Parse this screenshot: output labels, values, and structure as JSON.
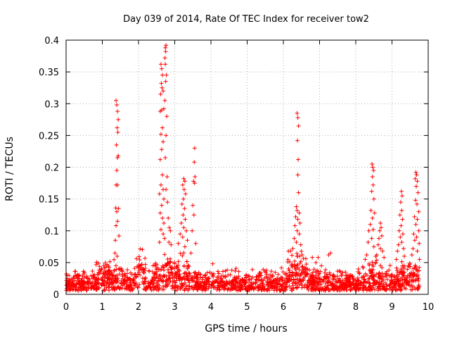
{
  "chart_data": {
    "type": "scatter",
    "title": "Day 039 of 2014, Rate Of TEC Index for receiver tow2",
    "xlabel": "GPS time / hours",
    "ylabel": "ROTI / TECUs",
    "xlim": [
      0,
      10
    ],
    "ylim": [
      0,
      0.4
    ],
    "x_ticks": [
      "0",
      "1",
      "2",
      "3",
      "4",
      "5",
      "6",
      "7",
      "8",
      "9",
      "10"
    ],
    "y_ticks": [
      "0",
      "0.05",
      "0.1",
      "0.15",
      "0.2",
      "0.25",
      "0.3",
      "0.35",
      "0.4"
    ],
    "grid": true,
    "marker": "+",
    "color": "#ff0000",
    "series": [
      {
        "name": "ROTI",
        "points": [
          [
            1.38,
            0.305
          ],
          [
            1.4,
            0.298
          ],
          [
            1.42,
            0.288
          ],
          [
            1.44,
            0.275
          ],
          [
            1.41,
            0.262
          ],
          [
            1.43,
            0.255
          ],
          [
            1.39,
            0.235
          ],
          [
            1.42,
            0.215
          ],
          [
            1.44,
            0.218
          ],
          [
            1.4,
            0.195
          ],
          [
            1.38,
            0.172
          ],
          [
            1.42,
            0.172
          ],
          [
            1.37,
            0.136
          ],
          [
            1.4,
            0.13
          ],
          [
            1.45,
            0.135
          ],
          [
            1.38,
            0.108
          ],
          [
            1.42,
            0.115
          ],
          [
            1.46,
            0.092
          ],
          [
            1.36,
            0.085
          ],
          [
            1.35,
            0.065
          ],
          [
            1.41,
            0.06
          ],
          [
            2.62,
            0.362
          ],
          [
            2.64,
            0.355
          ],
          [
            2.66,
            0.345
          ],
          [
            2.63,
            0.332
          ],
          [
            2.65,
            0.325
          ],
          [
            2.61,
            0.315
          ],
          [
            2.68,
            0.32
          ],
          [
            2.64,
            0.29
          ],
          [
            2.6,
            0.288
          ],
          [
            2.7,
            0.292
          ],
          [
            2.66,
            0.262
          ],
          [
            2.62,
            0.252
          ],
          [
            2.68,
            0.24
          ],
          [
            2.64,
            0.228
          ],
          [
            2.6,
            0.212
          ],
          [
            2.66,
            0.188
          ],
          [
            2.62,
            0.172
          ],
          [
            2.68,
            0.165
          ],
          [
            2.58,
            0.158
          ],
          [
            2.7,
            0.15
          ],
          [
            2.64,
            0.14
          ],
          [
            2.6,
            0.128
          ],
          [
            2.66,
            0.12
          ],
          [
            2.7,
            0.112
          ],
          [
            2.62,
            0.102
          ],
          [
            2.68,
            0.095
          ],
          [
            2.72,
            0.088
          ],
          [
            2.58,
            0.082
          ],
          [
            2.74,
            0.388
          ],
          [
            2.76,
            0.392
          ],
          [
            2.75,
            0.382
          ],
          [
            2.73,
            0.372
          ],
          [
            2.74,
            0.362
          ],
          [
            2.77,
            0.345
          ],
          [
            2.75,
            0.335
          ],
          [
            2.73,
            0.305
          ],
          [
            2.78,
            0.28
          ],
          [
            2.76,
            0.25
          ],
          [
            2.74,
            0.215
          ],
          [
            2.79,
            0.185
          ],
          [
            2.76,
            0.165
          ],
          [
            2.8,
            0.145
          ],
          [
            2.82,
            0.12
          ],
          [
            2.85,
            0.105
          ],
          [
            2.88,
            0.1
          ],
          [
            2.84,
            0.082
          ],
          [
            2.9,
            0.078
          ],
          [
            3.25,
            0.182
          ],
          [
            3.28,
            0.178
          ],
          [
            3.22,
            0.172
          ],
          [
            3.26,
            0.165
          ],
          [
            3.3,
            0.158
          ],
          [
            3.24,
            0.15
          ],
          [
            3.2,
            0.142
          ],
          [
            3.27,
            0.135
          ],
          [
            3.23,
            0.125
          ],
          [
            3.29,
            0.118
          ],
          [
            3.18,
            0.112
          ],
          [
            3.25,
            0.105
          ],
          [
            3.32,
            0.1
          ],
          [
            3.15,
            0.095
          ],
          [
            3.22,
            0.09
          ],
          [
            3.35,
            0.085
          ],
          [
            3.1,
            0.08
          ],
          [
            3.28,
            0.075
          ],
          [
            3.55,
            0.23
          ],
          [
            3.54,
            0.208
          ],
          [
            3.56,
            0.185
          ],
          [
            3.52,
            0.178
          ],
          [
            3.55,
            0.175
          ],
          [
            3.5,
            0.14
          ],
          [
            3.53,
            0.125
          ],
          [
            3.48,
            0.1
          ],
          [
            3.58,
            0.08
          ],
          [
            3.45,
            0.065
          ],
          [
            4.05,
            0.048
          ],
          [
            6.38,
            0.285
          ],
          [
            6.4,
            0.278
          ],
          [
            6.42,
            0.265
          ],
          [
            6.39,
            0.242
          ],
          [
            6.41,
            0.212
          ],
          [
            6.4,
            0.188
          ],
          [
            6.42,
            0.16
          ],
          [
            6.36,
            0.138
          ],
          [
            6.38,
            0.132
          ],
          [
            6.44,
            0.128
          ],
          [
            6.34,
            0.122
          ],
          [
            6.4,
            0.118
          ],
          [
            6.46,
            0.112
          ],
          [
            6.32,
            0.108
          ],
          [
            6.38,
            0.1
          ],
          [
            6.44,
            0.095
          ],
          [
            6.3,
            0.088
          ],
          [
            6.36,
            0.082
          ],
          [
            6.48,
            0.078
          ],
          [
            6.26,
            0.072
          ],
          [
            6.2,
            0.068
          ],
          [
            6.14,
            0.068
          ],
          [
            6.52,
            0.062
          ],
          [
            6.8,
            0.058
          ],
          [
            6.96,
            0.058
          ],
          [
            7.3,
            0.065
          ],
          [
            7.25,
            0.062
          ],
          [
            6.9,
            0.05
          ],
          [
            7.05,
            0.045
          ],
          [
            8.45,
            0.205
          ],
          [
            8.47,
            0.2
          ],
          [
            8.49,
            0.195
          ],
          [
            8.46,
            0.185
          ],
          [
            8.48,
            0.172
          ],
          [
            8.44,
            0.162
          ],
          [
            8.5,
            0.15
          ],
          [
            8.42,
            0.132
          ],
          [
            8.52,
            0.128
          ],
          [
            8.46,
            0.12
          ],
          [
            8.4,
            0.11
          ],
          [
            8.48,
            0.102
          ],
          [
            8.36,
            0.1
          ],
          [
            8.44,
            0.088
          ],
          [
            8.34,
            0.082
          ],
          [
            8.5,
            0.075
          ],
          [
            8.3,
            0.062
          ],
          [
            8.26,
            0.055
          ],
          [
            8.68,
            0.112
          ],
          [
            8.7,
            0.105
          ],
          [
            8.66,
            0.1
          ],
          [
            8.72,
            0.092
          ],
          [
            8.64,
            0.088
          ],
          [
            8.62,
            0.078
          ],
          [
            8.68,
            0.072
          ],
          [
            8.74,
            0.068
          ],
          [
            8.58,
            0.062
          ],
          [
            8.78,
            0.058
          ],
          [
            8.55,
            0.05
          ],
          [
            9.26,
            0.162
          ],
          [
            9.28,
            0.155
          ],
          [
            9.24,
            0.145
          ],
          [
            9.27,
            0.132
          ],
          [
            9.22,
            0.125
          ],
          [
            9.29,
            0.118
          ],
          [
            9.25,
            0.108
          ],
          [
            9.2,
            0.1
          ],
          [
            9.3,
            0.095
          ],
          [
            9.23,
            0.09
          ],
          [
            9.27,
            0.082
          ],
          [
            9.18,
            0.078
          ],
          [
            9.32,
            0.072
          ],
          [
            9.15,
            0.068
          ],
          [
            9.34,
            0.06
          ],
          [
            9.12,
            0.055
          ],
          [
            9.66,
            0.192
          ],
          [
            9.68,
            0.188
          ],
          [
            9.64,
            0.182
          ],
          [
            9.7,
            0.178
          ],
          [
            9.67,
            0.17
          ],
          [
            9.72,
            0.16
          ],
          [
            9.65,
            0.148
          ],
          [
            9.69,
            0.142
          ],
          [
            9.74,
            0.13
          ],
          [
            9.62,
            0.122
          ],
          [
            9.7,
            0.118
          ],
          [
            9.66,
            0.11
          ],
          [
            9.74,
            0.1
          ],
          [
            9.6,
            0.095
          ],
          [
            9.68,
            0.09
          ],
          [
            9.63,
            0.085
          ],
          [
            9.75,
            0.08
          ],
          [
            9.58,
            0.072
          ],
          [
            9.7,
            0.068
          ],
          [
            9.55,
            0.062
          ],
          [
            9.76,
            0.055
          ]
        ]
      }
    ],
    "baseline_band": {
      "x_range": [
        0.0,
        9.76
      ],
      "base": 0.017,
      "spread": 0.025,
      "bumps": [
        {
          "x": 1.1,
          "height": 0.022,
          "width": 0.35
        },
        {
          "x": 2.05,
          "height": 0.06,
          "width": 0.12
        },
        {
          "x": 2.7,
          "height": 0.03,
          "width": 0.25
        },
        {
          "x": 3.2,
          "height": 0.045,
          "width": 0.2
        },
        {
          "x": 6.25,
          "height": 0.035,
          "width": 0.18
        },
        {
          "x": 6.5,
          "height": 0.04,
          "width": 0.15
        },
        {
          "x": 8.5,
          "height": 0.025,
          "width": 0.25
        },
        {
          "x": 9.4,
          "height": 0.018,
          "width": 0.4
        }
      ]
    }
  }
}
